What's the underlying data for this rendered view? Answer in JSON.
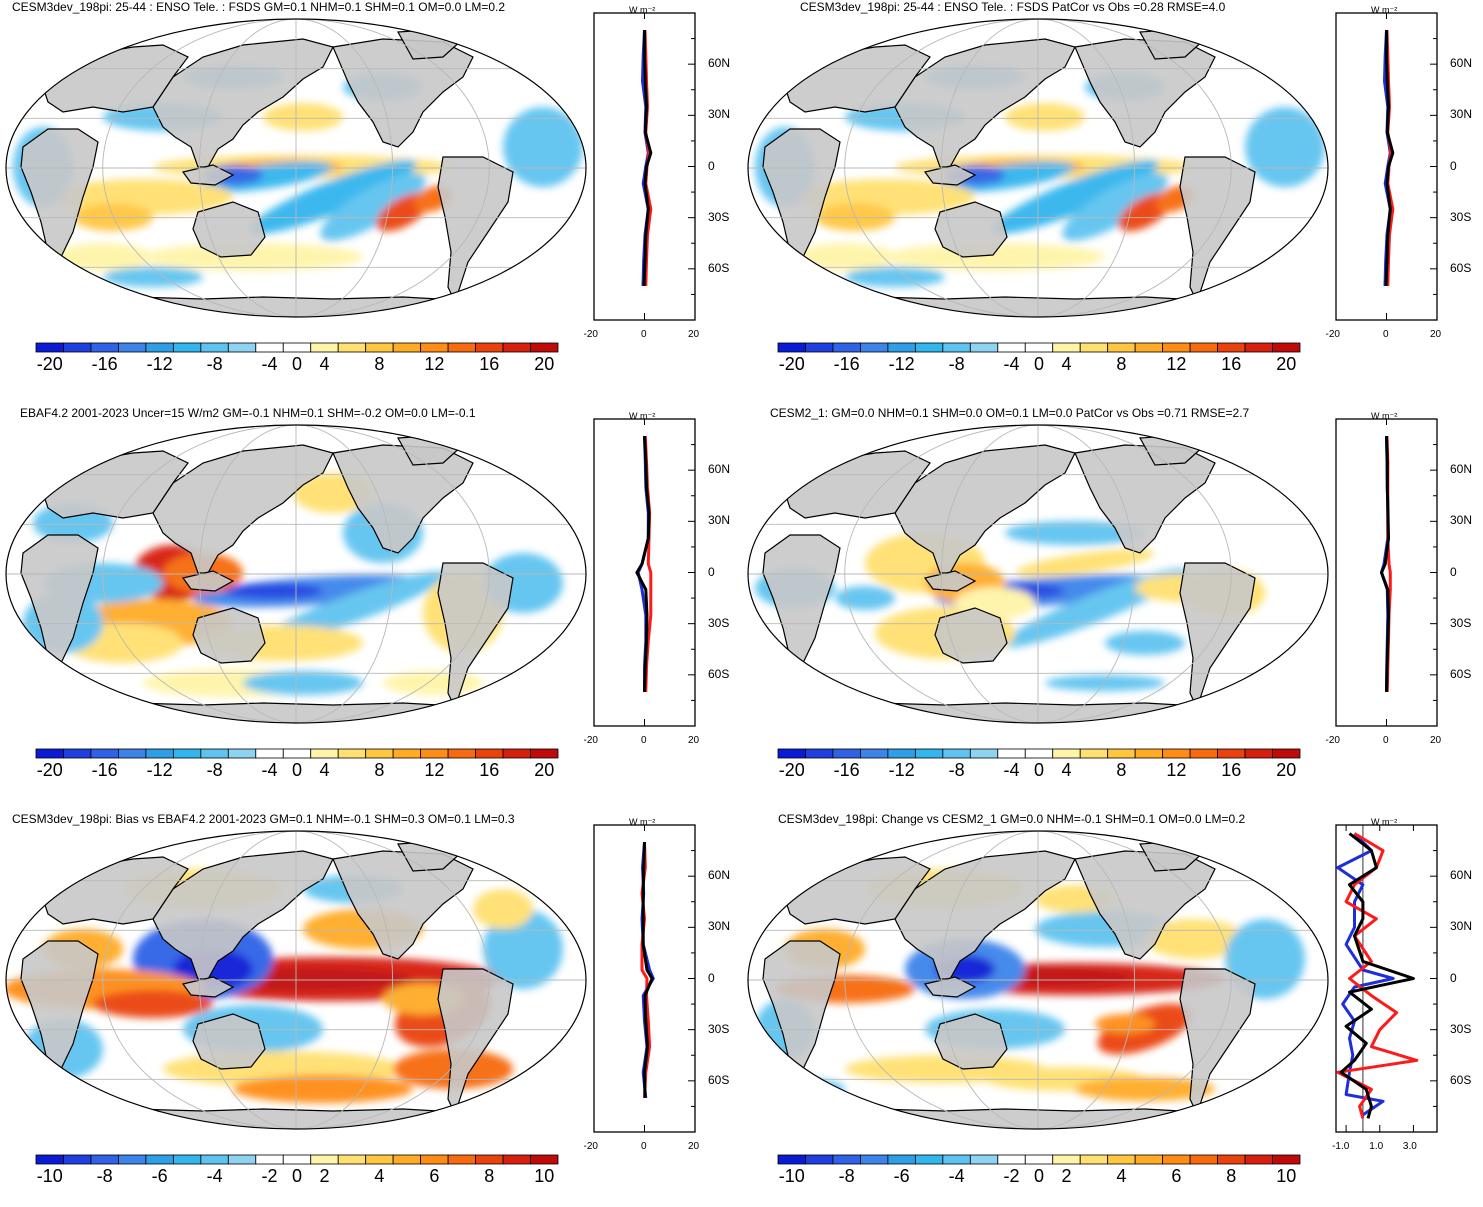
{
  "panels": [
    {
      "title": "CESM3dev_198pi: 25-44 : ENSO Tele. : FSDS GM=0.1 NHM=0.1 SHM=0.1 OM=0.0 LM=0.2",
      "colorbar_labels": [
        "-20",
        "-16",
        "-12",
        "-8",
        "-4",
        "0",
        "4",
        "8",
        "12",
        "16",
        "20"
      ],
      "zonal_x_ticks": [
        "-20",
        "0",
        "20"
      ],
      "zonal_lat_ticks": [
        "60N",
        "30N",
        "0",
        "30S",
        "60S"
      ],
      "zonal_unit": "W m⁻²"
    },
    {
      "title": "CESM3dev_198pi: 25-44 : ENSO Tele. : FSDS PatCor vs Obs =0.28 RMSE=4.0",
      "colorbar_labels": [
        "-20",
        "-16",
        "-12",
        "-8",
        "-4",
        "0",
        "4",
        "8",
        "12",
        "16",
        "20"
      ],
      "zonal_x_ticks": [
        "-20",
        "0",
        "20"
      ],
      "zonal_lat_ticks": [
        "60N",
        "30N",
        "0",
        "30S",
        "60S"
      ],
      "zonal_unit": "W m⁻²"
    },
    {
      "title": "EBAF4.2 2001-2023 Uncer=15 W/m2 GM=-0.1 NHM=0.1 SHM=-0.2 OM=0.0 LM=-0.1",
      "colorbar_labels": [
        "-20",
        "-16",
        "-12",
        "-8",
        "-4",
        "0",
        "4",
        "8",
        "12",
        "16",
        "20"
      ],
      "zonal_x_ticks": [
        "-20",
        "0",
        "20"
      ],
      "zonal_lat_ticks": [
        "60N",
        "30N",
        "0",
        "30S",
        "60S"
      ],
      "zonal_unit": "W m⁻²"
    },
    {
      "title": "CESM2_1: GM=0.0 NHM=0.1 SHM=0.0 OM=0.1 LM=0.0 PatCor vs Obs =0.71 RMSE=2.7",
      "colorbar_labels": [
        "-20",
        "-16",
        "-12",
        "-8",
        "-4",
        "0",
        "4",
        "8",
        "12",
        "16",
        "20"
      ],
      "zonal_x_ticks": [
        "-20",
        "0",
        "20"
      ],
      "zonal_lat_ticks": [
        "60N",
        "30N",
        "0",
        "30S",
        "60S"
      ],
      "zonal_unit": "W m⁻²"
    },
    {
      "title": "CESM3dev_198pi: Bias vs EBAF4.2 2001-2023 GM=0.1 NHM=-0.1 SHM=0.3 OM=0.1 LM=0.3",
      "colorbar_labels": [
        "-10",
        "-8",
        "-6",
        "-4",
        "-2",
        "0",
        "2",
        "4",
        "6",
        "8",
        "10"
      ],
      "zonal_x_ticks": [
        "-20",
        "0",
        "20"
      ],
      "zonal_lat_ticks": [
        "60N",
        "30N",
        "0",
        "30S",
        "60S"
      ],
      "zonal_unit": "W m⁻²"
    },
    {
      "title": "CESM3dev_198pi: Change vs CESM2_1 GM=0.0 NHM=-0.1 SHM=0.1 OM=0.0 LM=0.2",
      "colorbar_labels": [
        "-10",
        "-8",
        "-6",
        "-4",
        "-2",
        "0",
        "2",
        "4",
        "6",
        "8",
        "10"
      ],
      "zonal_x_ticks": [
        "-1.0",
        "1.0",
        "3.0"
      ],
      "zonal_lat_ticks": [
        "60N",
        "30N",
        "0",
        "30S",
        "60S"
      ],
      "zonal_unit": "W m⁻²"
    }
  ],
  "palette": [
    "#0a1bd6",
    "#1f3fe0",
    "#2f62e6",
    "#3d84ea",
    "#2e9fe6",
    "#33b5ee",
    "#5ec3f0",
    "#8fd3f2",
    "#ffffff",
    "#ffffff",
    "#fff4a8",
    "#ffe070",
    "#ffc63f",
    "#ffab25",
    "#ff8c14",
    "#f76a0d",
    "#ea420c",
    "#d61f0c",
    "#c00a0a"
  ],
  "colors": {
    "land": "#c8c8c8",
    "line_black": "#000000",
    "line_red": "#ff1a1a",
    "line_blue": "#1e2fd9"
  }
}
